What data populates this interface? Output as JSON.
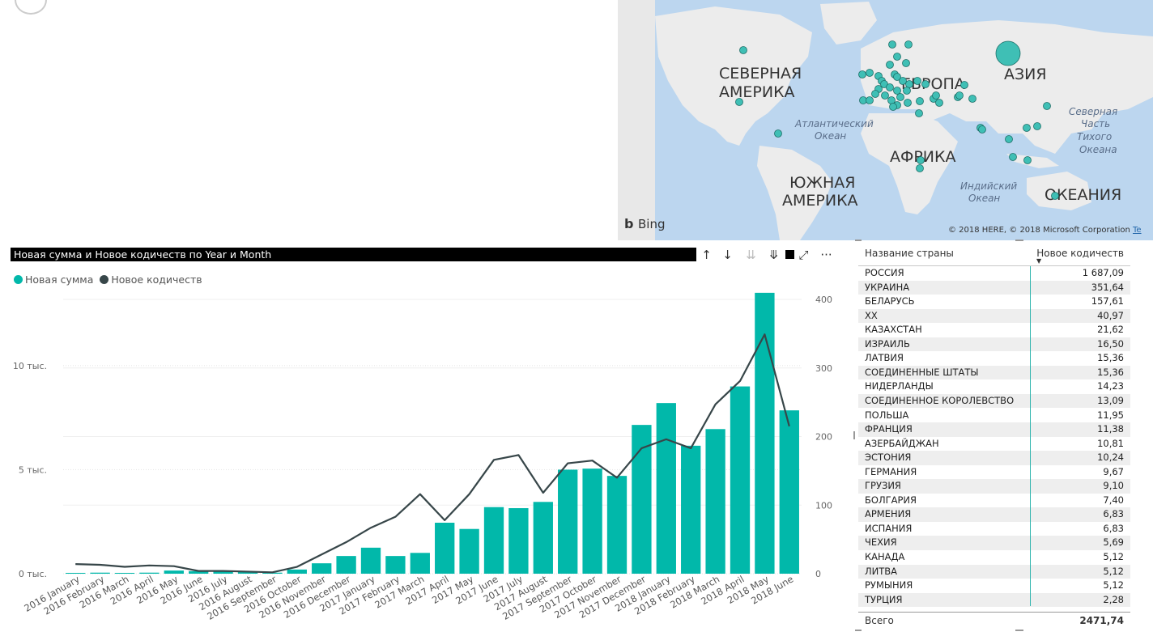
{
  "map": {
    "labels": {
      "north_america": [
        "СЕВЕРНАЯ",
        "АМЕРИКА"
      ],
      "south_america": [
        "ЮЖНАЯ",
        "АМЕРИКА"
      ],
      "europe": "ЕВРОПА",
      "asia": "АЗИЯ",
      "africa": "АФРИКА",
      "oceania": "ОКЕАНИЯ",
      "atlantic": [
        "Атлантический",
        "Океан"
      ],
      "indian": [
        "Индийский",
        "Океан"
      ],
      "pacific": [
        "Северная",
        "Часть",
        "Тихого",
        "Океана"
      ]
    },
    "bing_label": "Bing",
    "copyright": "© 2018 HERE, © 2018 Microsoft Corporation",
    "terms_link": "Te",
    "colors": {
      "water": "#bcd6ef",
      "land": "#ececec",
      "bubble": "#3fbfb5"
    }
  },
  "chart": {
    "title": "Новая сумма и Новое кодичеств по Year и Month",
    "legend": [
      {
        "label": "Новая сумма",
        "color": "#01b8aa"
      },
      {
        "label": "Новое кодичеств",
        "color": "#374649"
      }
    ],
    "toolbar": {
      "drill_up": "↑",
      "drill_down": "↓",
      "expand_all": "⇊",
      "expand_next": "⤋",
      "focus": "⤢",
      "more": "···"
    }
  },
  "chart_data": {
    "type": "bar",
    "title": "Новая сумма и Новое кодичеств по Year и Month",
    "categories": [
      "2016 January",
      "2016 February",
      "2016 March",
      "2016 April",
      "2016 May",
      "2016 June",
      "2016 July",
      "2016 August",
      "2016 September",
      "2016 October",
      "2016 November",
      "2016 December",
      "2017 January",
      "2017 February",
      "2017 March",
      "2017 April",
      "2017 May",
      "2017 June",
      "2017 July",
      "2017 August",
      "2017 September",
      "2017 October",
      "2017 November",
      "2017 December",
      "2018 January",
      "2018 February",
      "2018 March",
      "2018 April",
      "2018 May",
      "2018 June"
    ],
    "series": [
      {
        "name": "Новая сумма",
        "type": "bar",
        "axis": "left",
        "values": [
          40,
          50,
          40,
          50,
          150,
          120,
          150,
          100,
          50,
          200,
          500,
          850,
          1250,
          850,
          1000,
          2450,
          2150,
          3200,
          3150,
          3450,
          5000,
          5050,
          4700,
          7150,
          8200,
          6150,
          6950,
          9000,
          13500,
          7850
        ]
      },
      {
        "name": "Новое кодичеств",
        "type": "line",
        "axis": "right",
        "values": [
          14,
          13,
          10,
          12,
          11,
          4,
          4,
          3,
          2,
          10,
          28,
          46,
          67,
          83,
          116,
          78,
          116,
          166,
          173,
          118,
          161,
          165,
          140,
          183,
          196,
          183,
          247,
          281,
          349,
          215
        ]
      }
    ],
    "y_left": {
      "ticks": [
        "0 тыс.",
        "5 тыс.",
        "10 тыс."
      ],
      "min": 0,
      "max": 14000
    },
    "y_right": {
      "ticks": [
        "0",
        "100",
        "200",
        "300",
        "400"
      ],
      "min": 0,
      "max": 400
    },
    "grid": true,
    "legend_position": "top-left"
  },
  "table": {
    "col_name": "Название страны",
    "col_value": "Новое кодичеств",
    "rows": [
      {
        "name": "РОССИЯ",
        "value": "1 687,09"
      },
      {
        "name": "УКРАИНА",
        "value": "351,64"
      },
      {
        "name": "БЕЛАРУСЬ",
        "value": "157,61"
      },
      {
        "name": "XX",
        "value": "40,97"
      },
      {
        "name": "КАЗАХСТАН",
        "value": "21,62"
      },
      {
        "name": "ИЗРАИЛЬ",
        "value": "16,50"
      },
      {
        "name": "ЛАТВИЯ",
        "value": "15,36"
      },
      {
        "name": "СОЕДИНЕННЫЕ ШТАТЫ",
        "value": "15,36"
      },
      {
        "name": "НИДЕРЛАНДЫ",
        "value": "14,23"
      },
      {
        "name": "СОЕДИНЕННОЕ КОРОЛЕВСТВО",
        "value": "13,09"
      },
      {
        "name": "ПОЛЬША",
        "value": "11,95"
      },
      {
        "name": "ФРАНЦИЯ",
        "value": "11,38"
      },
      {
        "name": "АЗЕРБАЙДЖАН",
        "value": "10,81"
      },
      {
        "name": "ЭСТОНИЯ",
        "value": "10,24"
      },
      {
        "name": "ГЕРМАНИЯ",
        "value": "9,67"
      },
      {
        "name": "ГРУЗИЯ",
        "value": "9,10"
      },
      {
        "name": "БОЛГАРИЯ",
        "value": "7,40"
      },
      {
        "name": "АРМЕНИЯ",
        "value": "6,83"
      },
      {
        "name": "ИСПАНИЯ",
        "value": "6,83"
      },
      {
        "name": "ЧЕХИЯ",
        "value": "5,69"
      },
      {
        "name": "КАНАДА",
        "value": "5,12"
      },
      {
        "name": "ЛИТВА",
        "value": "5,12"
      },
      {
        "name": "РУМЫНИЯ",
        "value": "5,12"
      },
      {
        "name": "ТУРЦИЯ",
        "value": "2,28"
      }
    ],
    "total_label": "Всего",
    "total_value": "2471,74"
  }
}
